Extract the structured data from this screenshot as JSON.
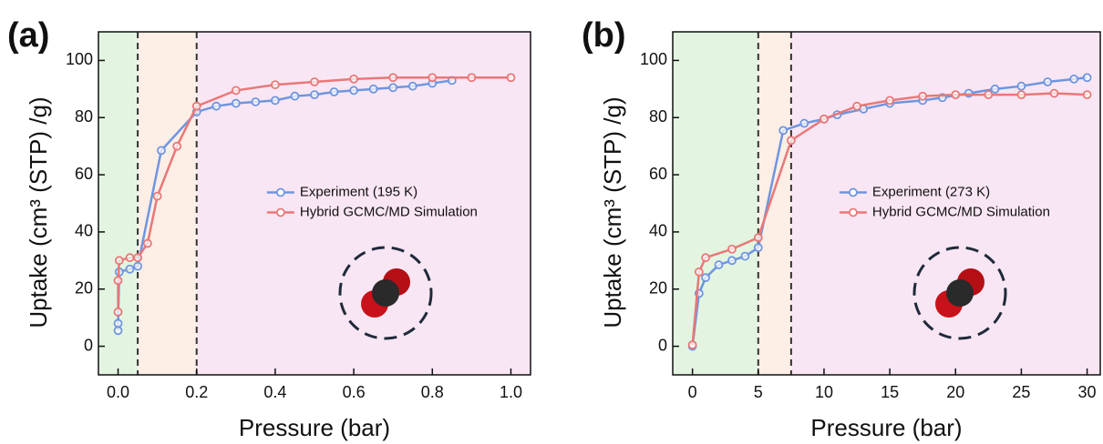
{
  "chart_data": [
    {
      "type": "line",
      "panel_label": "(a)",
      "xlabel": "Pressure (bar)",
      "ylabel": "Uptake (cm³ (STP) /g)",
      "xlim": [
        -0.05,
        1.05
      ],
      "ylim": [
        -10,
        110
      ],
      "xticks": [
        {
          "value": 0,
          "label": "0.0"
        },
        {
          "value": 0.2,
          "label": "0.2"
        },
        {
          "value": 0.4,
          "label": "0.4"
        },
        {
          "value": 0.6,
          "label": "0.6"
        },
        {
          "value": 0.8,
          "label": "0.8"
        },
        {
          "value": 1,
          "label": "1.0"
        }
      ],
      "yticks": [
        0,
        20,
        40,
        60,
        80,
        100
      ],
      "region_bounds": [
        0.05,
        0.2
      ],
      "region_colors": [
        "#e3f5e1",
        "#fdeee6",
        "#f9e6f4"
      ],
      "legend": "center right",
      "series": [
        {
          "name": "Experiment (195 K)",
          "color": "#6f95e0",
          "x": [
            0,
            0,
            0.003,
            0.03,
            0.05,
            0.11,
            0.2,
            0.25,
            0.3,
            0.35,
            0.4,
            0.45,
            0.5,
            0.55,
            0.6,
            0.65,
            0.7,
            0.75,
            0.8,
            0.85
          ],
          "values": [
            5.5,
            8,
            26,
            27,
            28,
            68.5,
            82,
            84,
            85,
            85.5,
            86,
            87.5,
            88,
            89,
            89.5,
            90,
            90.5,
            91,
            92,
            93
          ]
        },
        {
          "name": "Hybrid GCMC/MD Simulation",
          "color": "#e87878",
          "x": [
            0,
            0,
            0.003,
            0.03,
            0.05,
            0.075,
            0.1,
            0.15,
            0.2,
            0.3,
            0.4,
            0.5,
            0.6,
            0.7,
            0.8,
            0.9,
            1
          ],
          "values": [
            12,
            23,
            30,
            31,
            31,
            36,
            52.5,
            70,
            84,
            89.5,
            91.5,
            92.5,
            93.5,
            94,
            94,
            94,
            94
          ]
        }
      ]
    },
    {
      "type": "line",
      "panel_label": "(b)",
      "xlabel": "Pressure (bar)",
      "ylabel": "Uptake (cm³ (STP) /g)",
      "xlim": [
        -1.5,
        31
      ],
      "ylim": [
        -10,
        110
      ],
      "xticks": [
        0,
        5,
        10,
        15,
        20,
        25,
        30
      ],
      "yticks": [
        0,
        20,
        40,
        60,
        80,
        100
      ],
      "region_bounds": [
        5,
        7.5
      ],
      "region_colors": [
        "#e3f5e1",
        "#fdeee6",
        "#f9e6f4"
      ],
      "legend": "center right",
      "series": [
        {
          "name": "Experiment (273 K)",
          "color": "#6f95e0",
          "x": [
            0,
            0.5,
            1,
            2,
            3,
            4,
            5,
            6.9,
            8.5,
            10,
            11,
            13,
            15,
            17.5,
            19,
            21,
            23,
            25,
            27,
            29,
            30
          ],
          "values": [
            0,
            18.5,
            24,
            28.5,
            30,
            31.5,
            34.5,
            75.5,
            78,
            79.5,
            81,
            83,
            85,
            86,
            87,
            88.5,
            90,
            91,
            92.5,
            93.5,
            94
          ]
        },
        {
          "name": "Hybrid GCMC/MD Simulation",
          "color": "#e87878",
          "x": [
            0,
            0.5,
            1,
            3,
            5,
            7.5,
            10,
            12.5,
            15,
            17.5,
            20,
            22.5,
            25,
            27.5,
            30
          ],
          "values": [
            0.5,
            26,
            31,
            34,
            38,
            72,
            79.5,
            84,
            86,
            87.5,
            88,
            88,
            88,
            88.5,
            88
          ]
        }
      ]
    }
  ]
}
